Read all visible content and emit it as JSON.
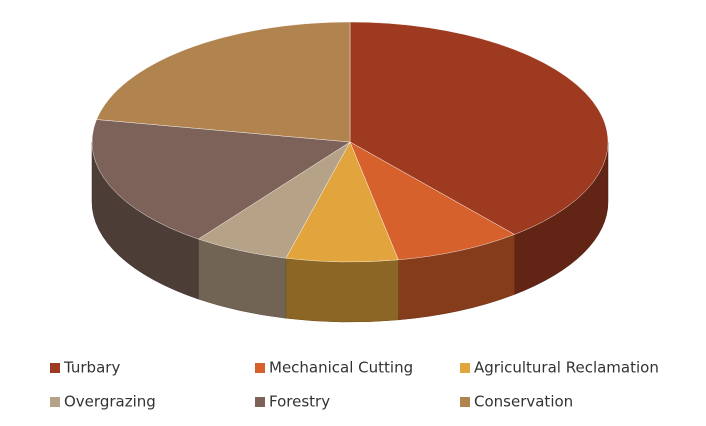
{
  "chart_data": {
    "type": "pie",
    "categories": [
      "Turbary",
      "Mechanical Cutting",
      "Agricultural Reclamation",
      "Overgrazing",
      "Forestry",
      "Conservation"
    ],
    "values": [
      39,
      8,
      7,
      6,
      18,
      22
    ],
    "colors": [
      "#9e3a20",
      "#d6612c",
      "#e2a43c",
      "#b6a287",
      "#7c6259",
      "#b1834f"
    ],
    "legend": "bottom"
  }
}
